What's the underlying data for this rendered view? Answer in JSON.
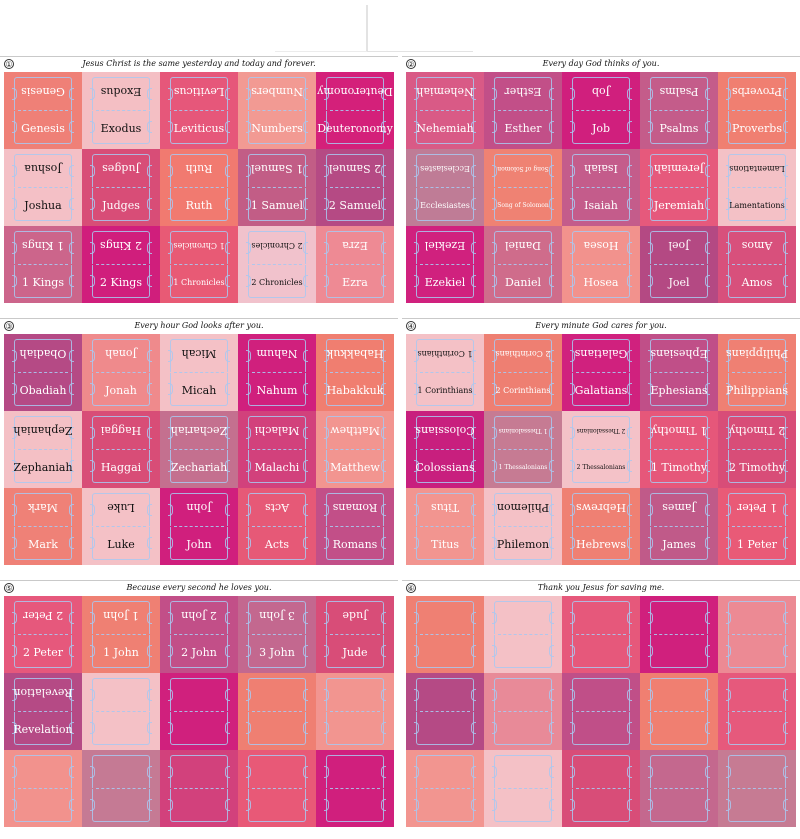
{
  "sheets": [
    {
      "number": "①",
      "title": "Jesus Christ is the same yesterday and today and forever.",
      "tiles": [
        {
          "label": "Genesis",
          "color": "#ef8077",
          "text_color": "#ffffff"
        },
        {
          "label": "Exodus",
          "color": "#f4bfc4",
          "text_color": "#111111"
        },
        {
          "label": "Leviticus",
          "color": "#e6577a",
          "text_color": "#ffffff"
        },
        {
          "label": "Numbers",
          "color": "#f29a93",
          "text_color": "#ffffff"
        },
        {
          "label": "Deuteronomy",
          "color": "#d4207a",
          "text_color": "#ffffff"
        },
        {
          "label": "Joshua",
          "color": "#f4c0c6",
          "text_color": "#111111"
        },
        {
          "label": "Judges",
          "color": "#d84d77",
          "text_color": "#ffffff"
        },
        {
          "label": "Ruth",
          "color": "#f17a70",
          "text_color": "#ffffff"
        },
        {
          "label": "1 Samuel",
          "color": "#c25d86",
          "text_color": "#ffffff"
        },
        {
          "label": "2 Samuel",
          "color": "#b54a84",
          "text_color": "#ffffff"
        },
        {
          "label": "1 Kings",
          "color": "#cc658b",
          "text_color": "#ffffff"
        },
        {
          "label": "2 Kings",
          "color": "#d01e7c",
          "text_color": "#ffffff"
        },
        {
          "label": "1 Chronicles",
          "color": "#e85a75",
          "text_color": "#ffffff"
        },
        {
          "label": "2 Chronicles",
          "color": "#f1c2cc",
          "text_color": "#111111"
        },
        {
          "label": "Ezra",
          "color": "#ee8a94",
          "text_color": "#ffffff"
        }
      ]
    },
    {
      "number": "②",
      "title": "Every day God thinks of you.",
      "tiles": [
        {
          "label": "Nehemiah",
          "color": "#d95a86",
          "text_color": "#ffffff"
        },
        {
          "label": "Esther",
          "color": "#c24f88",
          "text_color": "#ffffff"
        },
        {
          "label": "Job",
          "color": "#d01f7d",
          "text_color": "#ffffff"
        },
        {
          "label": "Psalms",
          "color": "#c45c8a",
          "text_color": "#ffffff"
        },
        {
          "label": "Proverbs",
          "color": "#f07f71",
          "text_color": "#ffffff"
        },
        {
          "label": "Ecclesiastes",
          "color": "#bf7c96",
          "text_color": "#ffffff"
        },
        {
          "label": "Song of Solomon",
          "color": "#ef8273",
          "text_color": "#ffffff"
        },
        {
          "label": "Isaiah",
          "color": "#c45c8b",
          "text_color": "#ffffff"
        },
        {
          "label": "Jeremiah",
          "color": "#e6597c",
          "text_color": "#ffffff"
        },
        {
          "label": "Lamentations",
          "color": "#f4c1c6",
          "text_color": "#111111"
        },
        {
          "label": "Ezekiel",
          "color": "#d0217e",
          "text_color": "#ffffff"
        },
        {
          "label": "Daniel",
          "color": "#cf6c8b",
          "text_color": "#ffffff"
        },
        {
          "label": "Hosea",
          "color": "#f2928d",
          "text_color": "#ffffff"
        },
        {
          "label": "Joel",
          "color": "#b44983",
          "text_color": "#ffffff"
        },
        {
          "label": "Amos",
          "color": "#d8507c",
          "text_color": "#ffffff"
        }
      ]
    },
    {
      "number": "③",
      "title": "Every hour God looks after you.",
      "tiles": [
        {
          "label": "Obadiah",
          "color": "#b54a85",
          "text_color": "#ffffff"
        },
        {
          "label": "Jonah",
          "color": "#ef8a8c",
          "text_color": "#ffffff"
        },
        {
          "label": "Micah",
          "color": "#f4c1c6",
          "text_color": "#111111"
        },
        {
          "label": "Nahum",
          "color": "#d0207d",
          "text_color": "#ffffff"
        },
        {
          "label": "Habakkuk",
          "color": "#f07e70",
          "text_color": "#ffffff"
        },
        {
          "label": "Zephaniah",
          "color": "#f4c0c5",
          "text_color": "#111111"
        },
        {
          "label": "Haggai",
          "color": "#d84d77",
          "text_color": "#ffffff"
        },
        {
          "label": "Zechariah",
          "color": "#c4708f",
          "text_color": "#ffffff"
        },
        {
          "label": "Malachi",
          "color": "#d2417c",
          "text_color": "#ffffff"
        },
        {
          "label": "Matthew",
          "color": "#f29590",
          "text_color": "#ffffff"
        },
        {
          "label": "Mark",
          "color": "#ef8177",
          "text_color": "#ffffff"
        },
        {
          "label": "Luke",
          "color": "#f4c1c6",
          "text_color": "#111111"
        },
        {
          "label": "John",
          "color": "#d01f7d",
          "text_color": "#ffffff"
        },
        {
          "label": "Acts",
          "color": "#e65977",
          "text_color": "#ffffff"
        },
        {
          "label": "Romans",
          "color": "#c24f88",
          "text_color": "#ffffff"
        }
      ]
    },
    {
      "number": "④",
      "title": "Every minute God cares for you.",
      "tiles": [
        {
          "label": "1 Corinthians",
          "color": "#f4c1c6",
          "text_color": "#111111"
        },
        {
          "label": "2 Corinthians",
          "color": "#ee7f72",
          "text_color": "#ffffff"
        },
        {
          "label": "Galatians",
          "color": "#d0217e",
          "text_color": "#ffffff"
        },
        {
          "label": "Ephesians",
          "color": "#c04f88",
          "text_color": "#ffffff"
        },
        {
          "label": "Philippians",
          "color": "#ef8073",
          "text_color": "#ffffff"
        },
        {
          "label": "Colossians",
          "color": "#c81f7e",
          "text_color": "#ffffff"
        },
        {
          "label": "1 Thessalonians",
          "color": "#c67b93",
          "text_color": "#ffffff"
        },
        {
          "label": "2 Thessalonians",
          "color": "#f4c2c8",
          "text_color": "#111111"
        },
        {
          "label": "1 Timothy",
          "color": "#e6577a",
          "text_color": "#ffffff"
        },
        {
          "label": "2 Timothy",
          "color": "#d84d78",
          "text_color": "#ffffff"
        },
        {
          "label": "Titus",
          "color": "#f29590",
          "text_color": "#ffffff"
        },
        {
          "label": "Philemon",
          "color": "#f4c1c6",
          "text_color": "#111111"
        },
        {
          "label": "Hebrews",
          "color": "#ef8073",
          "text_color": "#ffffff"
        },
        {
          "label": "James",
          "color": "#c05a89",
          "text_color": "#ffffff"
        },
        {
          "label": "1 Peter",
          "color": "#e95a77",
          "text_color": "#ffffff"
        }
      ]
    },
    {
      "number": "⑤",
      "title": "Because every second he loves you.",
      "tiles": [
        {
          "label": "2 Peter",
          "color": "#e6587c",
          "text_color": "#ffffff"
        },
        {
          "label": "1 John",
          "color": "#ef8073",
          "text_color": "#ffffff"
        },
        {
          "label": "2 John",
          "color": "#c24f88",
          "text_color": "#ffffff"
        },
        {
          "label": "3 John",
          "color": "#c3688f",
          "text_color": "#ffffff"
        },
        {
          "label": "Jude",
          "color": "#d84d78",
          "text_color": "#ffffff"
        },
        {
          "label": "Revelation",
          "color": "#b54a85",
          "text_color": "#ffffff"
        },
        {
          "label": "",
          "color": "#f4c1c6",
          "text_color": "#111111"
        },
        {
          "label": "",
          "color": "#d0207d",
          "text_color": "#ffffff"
        },
        {
          "label": "",
          "color": "#ef7f72",
          "text_color": "#ffffff"
        },
        {
          "label": "",
          "color": "#f29590",
          "text_color": "#ffffff"
        },
        {
          "label": "",
          "color": "#f2928d",
          "text_color": "#ffffff"
        },
        {
          "label": "",
          "color": "#c57a94",
          "text_color": "#ffffff"
        },
        {
          "label": "",
          "color": "#d2417c",
          "text_color": "#ffffff"
        },
        {
          "label": "",
          "color": "#e85977",
          "text_color": "#ffffff"
        },
        {
          "label": "",
          "color": "#d01f7d",
          "text_color": "#ffffff"
        }
      ]
    },
    {
      "number": "⑥",
      "title": "Thank you Jesus for saving me.",
      "tiles": [
        {
          "label": "",
          "color": "#ef8073",
          "text_color": "#ffffff"
        },
        {
          "label": "",
          "color": "#f4c1c6",
          "text_color": "#111111"
        },
        {
          "label": "",
          "color": "#e6587b",
          "text_color": "#ffffff"
        },
        {
          "label": "",
          "color": "#d0207d",
          "text_color": "#ffffff"
        },
        {
          "label": "",
          "color": "#ec8a94",
          "text_color": "#ffffff"
        },
        {
          "label": "",
          "color": "#b54a85",
          "text_color": "#ffffff"
        },
        {
          "label": "",
          "color": "#e88a98",
          "text_color": "#ffffff"
        },
        {
          "label": "",
          "color": "#c04f88",
          "text_color": "#ffffff"
        },
        {
          "label": "",
          "color": "#f07f71",
          "text_color": "#ffffff"
        },
        {
          "label": "",
          "color": "#e6597c",
          "text_color": "#ffffff"
        },
        {
          "label": "",
          "color": "#f29590",
          "text_color": "#ffffff"
        },
        {
          "label": "",
          "color": "#f4c1c6",
          "text_color": "#111111"
        },
        {
          "label": "",
          "color": "#d84d78",
          "text_color": "#ffffff"
        },
        {
          "label": "",
          "color": "#c4688e",
          "text_color": "#ffffff"
        },
        {
          "label": "",
          "color": "#c67b93",
          "text_color": "#ffffff"
        }
      ]
    }
  ]
}
